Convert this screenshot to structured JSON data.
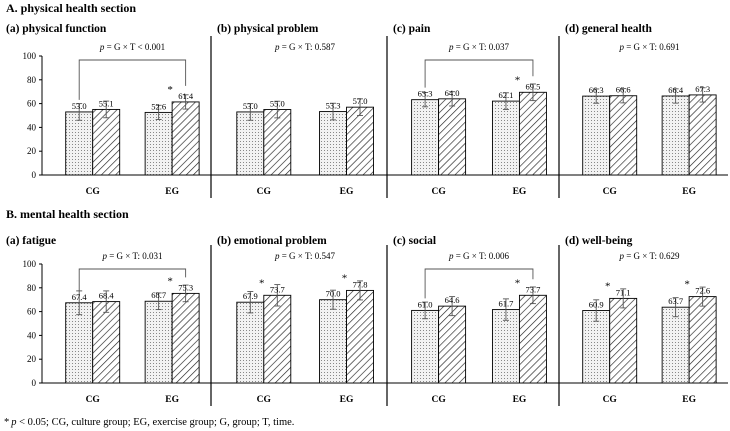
{
  "sections": [
    {
      "title": "A. physical health section"
    },
    {
      "title": "B. mental health section"
    }
  ],
  "footnote": {
    "star": "*",
    "p": "p",
    "rest": " < 0.05; CG, culture group; EG, exercise group; G, group; T, time."
  },
  "colors": {
    "bar_pre_fill": "#ececec",
    "bar_post_fill": "#ffffff",
    "stroke": "#000000",
    "hatch": "#222222"
  },
  "chart_data": [
    {
      "type": "bar",
      "section": 0,
      "title": "(a) physical function",
      "p_value": "0.001",
      "p_relation": "<",
      "interaction_bracket": true,
      "categories": [
        "CG",
        "EG"
      ],
      "ylim": [
        0,
        100
      ],
      "yticks": [
        0,
        20,
        40,
        60,
        80,
        100
      ],
      "grid": false,
      "series": [
        {
          "values": [
            53.0,
            52.6
          ],
          "labels": [
            "53.0",
            "52.6"
          ],
          "errors": [
            7,
            6
          ],
          "star": [
            false,
            false
          ]
        },
        {
          "values": [
            55.1,
            61.4
          ],
          "labels": [
            "55.1",
            "61.4"
          ],
          "errors": [
            7,
            6
          ],
          "star": [
            false,
            true
          ]
        }
      ]
    },
    {
      "type": "bar",
      "section": 0,
      "title": "(b) physical problem",
      "p_value": "0.587",
      "p_relation": ":",
      "interaction_bracket": false,
      "categories": [
        "CG",
        "EG"
      ],
      "ylim": [
        0,
        100
      ],
      "yticks": [
        0,
        20,
        40,
        60,
        80,
        100
      ],
      "grid": false,
      "series": [
        {
          "values": [
            53.0,
            53.3
          ],
          "labels": [
            "53.0",
            "53.3"
          ],
          "errors": [
            7,
            7
          ],
          "star": [
            false,
            false
          ]
        },
        {
          "values": [
            55.0,
            57.0
          ],
          "labels": [
            "55.0",
            "57.0"
          ],
          "errors": [
            7,
            7
          ],
          "star": [
            false,
            false
          ]
        }
      ]
    },
    {
      "type": "bar",
      "section": 0,
      "title": "(c) pain",
      "p_value": "0.037",
      "p_relation": ":",
      "interaction_bracket": true,
      "categories": [
        "CG",
        "EG"
      ],
      "ylim": [
        0,
        100
      ],
      "yticks": [
        0,
        20,
        40,
        60,
        80,
        100
      ],
      "grid": false,
      "series": [
        {
          "values": [
            63.3,
            62.1
          ],
          "labels": [
            "63.3",
            "62.1"
          ],
          "errors": [
            6,
            7
          ],
          "star": [
            false,
            false
          ]
        },
        {
          "values": [
            64.0,
            69.5
          ],
          "labels": [
            "64.0",
            "69.5"
          ],
          "errors": [
            6,
            7
          ],
          "star": [
            false,
            true
          ]
        }
      ]
    },
    {
      "type": "bar",
      "section": 0,
      "title": "(d) general health",
      "p_value": "0.691",
      "p_relation": ":",
      "interaction_bracket": false,
      "categories": [
        "CG",
        "EG"
      ],
      "ylim": [
        0,
        100
      ],
      "yticks": [
        0,
        20,
        40,
        60,
        80,
        100
      ],
      "grid": false,
      "series": [
        {
          "values": [
            66.3,
            66.4
          ],
          "labels": [
            "66.3",
            "66.4"
          ],
          "errors": [
            6,
            6
          ],
          "star": [
            false,
            false
          ]
        },
        {
          "values": [
            66.6,
            67.3
          ],
          "labels": [
            "66.6",
            "67.3"
          ],
          "errors": [
            6,
            6
          ],
          "star": [
            false,
            false
          ]
        }
      ]
    },
    {
      "type": "bar",
      "section": 1,
      "title": "(a) fatigue",
      "p_value": "0.031",
      "p_relation": ":",
      "interaction_bracket": true,
      "categories": [
        "CG",
        "EG"
      ],
      "ylim": [
        0,
        100
      ],
      "yticks": [
        0,
        20,
        40,
        60,
        80,
        100
      ],
      "grid": false,
      "series": [
        {
          "values": [
            67.4,
            68.7
          ],
          "labels": [
            "67.4",
            "68.7"
          ],
          "errors": [
            10,
            7
          ],
          "star": [
            false,
            false
          ]
        },
        {
          "values": [
            68.4,
            75.3
          ],
          "labels": [
            "68.4",
            "75.3"
          ],
          "errors": [
            9,
            7
          ],
          "star": [
            false,
            true
          ]
        }
      ]
    },
    {
      "type": "bar",
      "section": 1,
      "title": "(b) emotional problem",
      "p_value": "0.547",
      "p_relation": ":",
      "interaction_bracket": false,
      "categories": [
        "CG",
        "EG"
      ],
      "ylim": [
        0,
        100
      ],
      "yticks": [
        0,
        20,
        40,
        60,
        80,
        100
      ],
      "grid": false,
      "series": [
        {
          "values": [
            67.9,
            70.0
          ],
          "labels": [
            "67.9",
            "70.0"
          ],
          "errors": [
            9,
            8
          ],
          "star": [
            false,
            false
          ]
        },
        {
          "values": [
            73.7,
            77.8
          ],
          "labels": [
            "73.7",
            "77.8"
          ],
          "errors": [
            9,
            8
          ],
          "star": [
            true,
            true
          ]
        }
      ]
    },
    {
      "type": "bar",
      "section": 1,
      "title": "(c) social",
      "p_value": "0.006",
      "p_relation": ":",
      "interaction_bracket": true,
      "categories": [
        "CG",
        "EG"
      ],
      "ylim": [
        0,
        100
      ],
      "yticks": [
        0,
        20,
        40,
        60,
        80,
        100
      ],
      "grid": false,
      "series": [
        {
          "values": [
            61.0,
            61.7
          ],
          "labels": [
            "61.0",
            "61.7"
          ],
          "errors": [
            7,
            9
          ],
          "star": [
            false,
            false
          ]
        },
        {
          "values": [
            64.6,
            73.7
          ],
          "labels": [
            "64.6",
            "73.7"
          ],
          "errors": [
            8,
            7
          ],
          "star": [
            false,
            true
          ]
        }
      ]
    },
    {
      "type": "bar",
      "section": 1,
      "title": "(d) well-being",
      "p_value": "0.629",
      "p_relation": ":",
      "interaction_bracket": false,
      "categories": [
        "CG",
        "EG"
      ],
      "ylim": [
        0,
        100
      ],
      "yticks": [
        0,
        20,
        40,
        60,
        80,
        100
      ],
      "grid": false,
      "series": [
        {
          "values": [
            60.9,
            63.7
          ],
          "labels": [
            "60.9",
            "63.7"
          ],
          "errors": [
            9,
            8
          ],
          "star": [
            false,
            false
          ]
        },
        {
          "values": [
            71.1,
            72.6
          ],
          "labels": [
            "71.1",
            "72.6"
          ],
          "errors": [
            8,
            8
          ],
          "star": [
            true,
            true
          ]
        }
      ]
    }
  ]
}
